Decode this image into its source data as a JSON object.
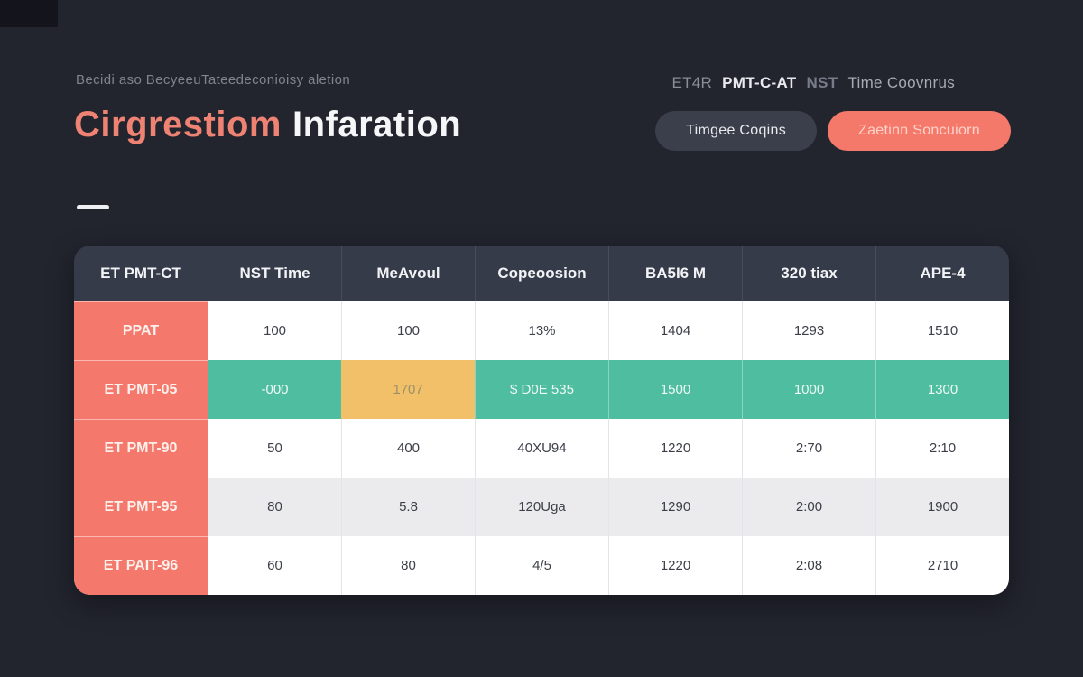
{
  "page": {
    "background_color": "#22242e"
  },
  "colors": {
    "accent_salmon": "#f4796b",
    "teal_highlight": "#4fbda0",
    "yellow_highlight": "#f1c069",
    "table_header_bg": "#363b49",
    "alt_row_bg": "#ebebee"
  },
  "header": {
    "subtitle": "Becidi aso BecyeeuTateedeconioisy aletion",
    "title_accent": "Cirgrestiom",
    "title_rest": "Infaration",
    "right_label": {
      "part1": "ET4R",
      "part2": "PMT-C-AT",
      "part3": "NST",
      "part4": "Time Coovnrus"
    },
    "buttons": {
      "secondary": "Timgee Coqins",
      "primary": "Zaetinn Soncuiorn"
    }
  },
  "table": {
    "columns": [
      "ET PMT-CT",
      "NST Time",
      "MeAvoul",
      "Copeoosion",
      "BA5I6 M",
      "320 tiax",
      "APE-4"
    ],
    "rows": [
      {
        "label": "PPAT",
        "values": [
          "100",
          "100",
          "13%",
          "1404",
          "1293",
          "1510"
        ]
      },
      {
        "label": "ET PMT-05",
        "values": [
          "-000",
          "1707",
          "$ D0E 535",
          "1500",
          "1000",
          "1300"
        ]
      },
      {
        "label": "ET PMT-90",
        "values": [
          "50",
          "400",
          "40XU94",
          "1220",
          "2:70",
          "2:10"
        ]
      },
      {
        "label": "ET PMT-95",
        "values": [
          "80",
          "5.8",
          "120Uga",
          "1290",
          "2:00",
          "1900"
        ]
      },
      {
        "label": "ET PAIT-96",
        "values": [
          "60",
          "80",
          "4/5",
          "1220",
          "2:08",
          "2710"
        ]
      }
    ]
  }
}
